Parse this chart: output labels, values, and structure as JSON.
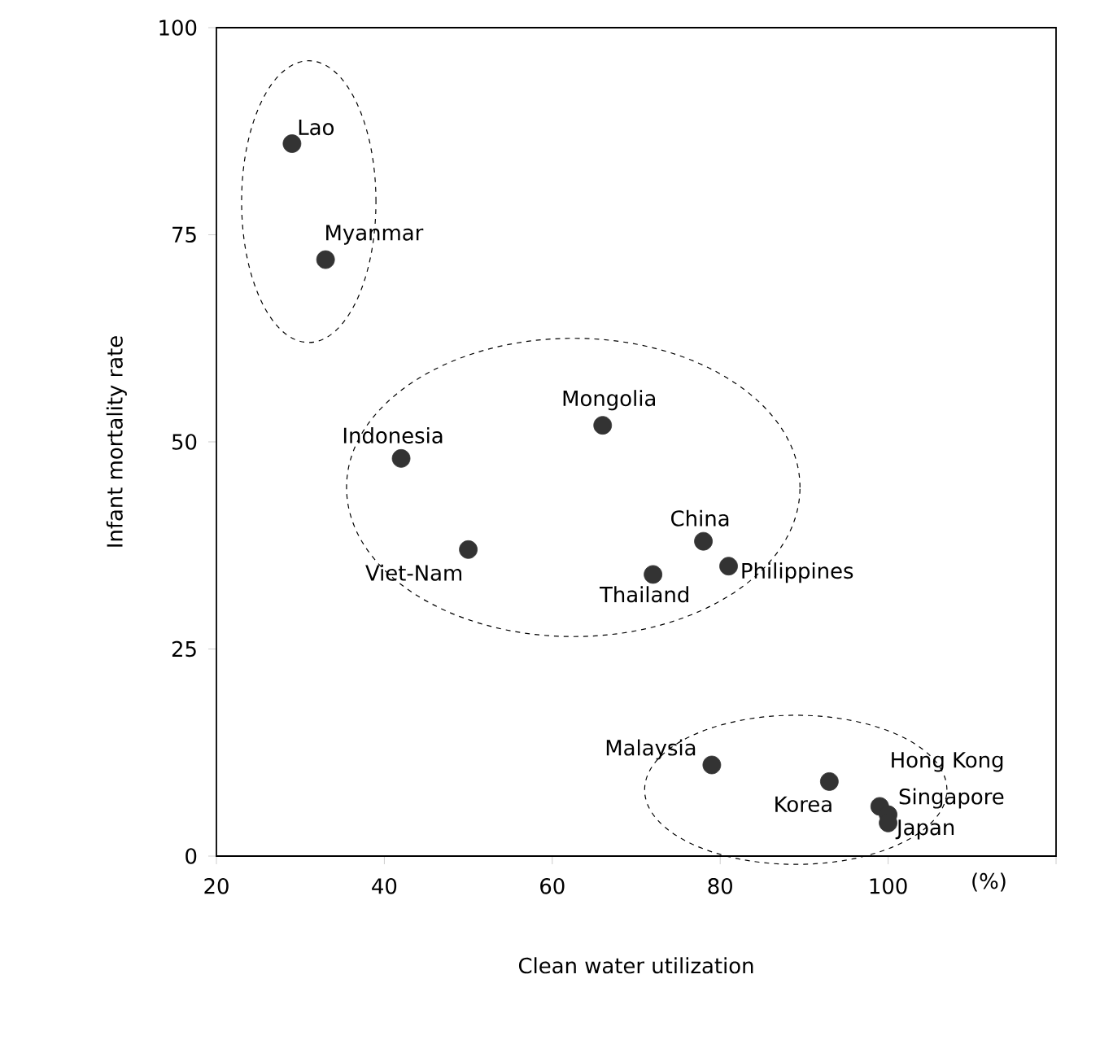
{
  "chart_data": {
    "type": "scatter",
    "xlabel": "Clean water utilization",
    "ylabel": "Infant mortality rate",
    "xlim": [
      20,
      120
    ],
    "xticks": [
      20,
      40,
      60,
      80,
      100,
      {
        "value": 120,
        "label": null
      }
    ],
    "ylim": [
      0,
      100
    ],
    "yticks": [
      0,
      25,
      50,
      75,
      100
    ],
    "grid": false,
    "marker": "circle",
    "series": [
      {
        "color": "#333333",
        "x": [
          29,
          33,
          42,
          66,
          50,
          78,
          81,
          72,
          79,
          93,
          99,
          100,
          100
        ],
        "values": [
          86,
          72,
          48,
          52,
          37,
          38,
          35,
          34,
          11,
          9,
          6,
          5,
          4
        ]
      }
    ],
    "annotations": [
      {
        "text": "Lao",
        "x": 29,
        "y": 86
      },
      {
        "text": "Myanmar",
        "x": 33,
        "y": 72
      },
      {
        "text": "Indonesia",
        "x": 42,
        "y": 48
      },
      {
        "text": "Mongolia",
        "x": 66,
        "y": 52
      },
      {
        "text": "Viet-Nam",
        "x": 50,
        "y": 37
      },
      {
        "text": "China",
        "x": 78,
        "y": 38
      },
      {
        "text": "Philippines",
        "x": 81,
        "y": 35
      },
      {
        "text": "Thailand",
        "x": 72,
        "y": 34
      },
      {
        "text": "Malaysia",
        "x": 79,
        "y": 11
      },
      {
        "text": "Korea",
        "x": 93,
        "y": 9
      },
      {
        "text": "Hong Kong",
        "x": 99,
        "y": 6
      },
      {
        "text": "Singapore",
        "x": 100,
        "y": 5
      },
      {
        "text": "Japan",
        "x": 100,
        "y": 4
      },
      "(%)"
    ]
  }
}
